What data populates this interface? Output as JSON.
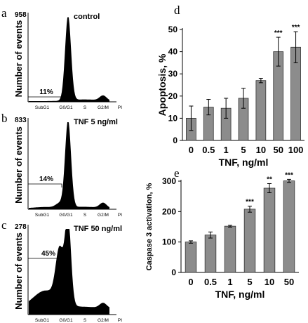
{
  "chart_data": [
    {
      "type": "area",
      "panel": "a",
      "ymax_label": "958",
      "condition": "control",
      "ylabel": "Number of events",
      "bracket_label": "11%",
      "xticks": [
        "SubG1",
        "G0/G1",
        "S",
        "G2/M",
        "PI"
      ],
      "peaks": {
        "subg1": 0.0,
        "g0g1": 1.0,
        "g2m": 0.06
      }
    },
    {
      "type": "area",
      "panel": "b",
      "ymax_label": "833",
      "condition": "TNF 5 ng/ml",
      "ylabel": "Number of events",
      "bracket_label": "14%",
      "xticks": [
        "SubG1",
        "G0/G1",
        "S",
        "G2/M",
        "PI"
      ],
      "peaks": {
        "subg1": 0.05,
        "g0g1": 1.0,
        "g2m": 0.06
      }
    },
    {
      "type": "area",
      "panel": "c",
      "ymax_label": "278",
      "condition": "TNF 50 ng/ml",
      "ylabel": "Number of events",
      "bracket_label": "45%",
      "xticks": [
        "SubG1",
        "G0/G1",
        "S",
        "G2/M",
        "PI"
      ],
      "peaks": {
        "subg1": 0.6,
        "g0g1": 1.0,
        "g2m": 0.06
      }
    },
    {
      "type": "bar",
      "panel": "d",
      "categories": [
        "0",
        "0.5",
        "1",
        "5",
        "10",
        "50",
        "100"
      ],
      "values": [
        10,
        15,
        14.5,
        19,
        27,
        40,
        42
      ],
      "errors": [
        5.5,
        3.5,
        4.5,
        4.5,
        1,
        6.5,
        7
      ],
      "significance": [
        "",
        "",
        "",
        "",
        "",
        "***",
        "***"
      ],
      "xlabel": "TNF, ng/ml",
      "ylabel": "Apoptosis, %",
      "ylim": [
        0,
        50
      ],
      "yticks": [
        0,
        10,
        20,
        30,
        40,
        50
      ],
      "color": "#8c8c8c"
    },
    {
      "type": "bar",
      "panel": "e",
      "categories": [
        "0",
        "0.5",
        "1",
        "5",
        "10",
        "50"
      ],
      "values": [
        100,
        123,
        152,
        208,
        277,
        301
      ],
      "errors": [
        4,
        10,
        3,
        10,
        15,
        5
      ],
      "significance": [
        "",
        "",
        "",
        "***",
        "**",
        "***"
      ],
      "xlabel": "TNF, ng/ml",
      "ylabel": "Caspase 3 activation, %",
      "ylim": [
        0,
        300
      ],
      "yticks": [
        0,
        100,
        200,
        300
      ],
      "color": "#8c8c8c"
    }
  ]
}
